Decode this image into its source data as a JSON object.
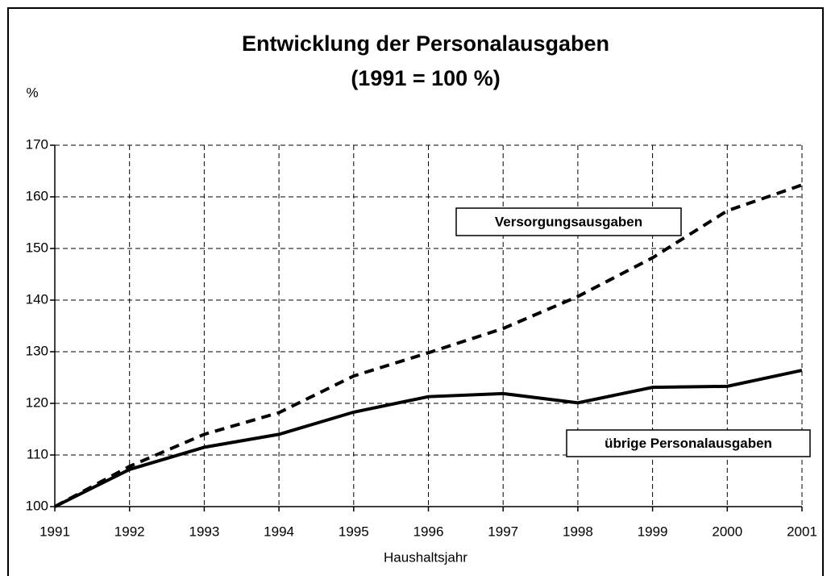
{
  "chart_data": {
    "type": "line",
    "title": "Entwicklung der Personalausgaben",
    "subtitle": "(1991 = 100 %)",
    "y_label": "%",
    "x_label": "Haushaltsjahr",
    "x": [
      1991,
      1992,
      1993,
      1994,
      1995,
      1996,
      1997,
      1998,
      1999,
      2000,
      2001
    ],
    "xlim": [
      1991,
      2001
    ],
    "xticks": [
      1991,
      1992,
      1993,
      1994,
      1995,
      1996,
      1997,
      1998,
      1999,
      2000,
      2001
    ],
    "ylim": [
      100,
      170
    ],
    "yticks": [
      100,
      110,
      120,
      130,
      140,
      150,
      160,
      170
    ],
    "grid": true,
    "series": [
      {
        "name": "Versorgungsausgaben",
        "color": "#000000",
        "dash": true,
        "values": [
          100,
          107.8,
          114,
          118.2,
          125.3,
          129.8,
          134.5,
          140.7,
          148.2,
          157.3,
          162.3
        ]
      },
      {
        "name": "übrige Personalausgaben",
        "color": "#000000",
        "dash": false,
        "values": [
          100,
          107.2,
          111.5,
          114,
          118.3,
          121.3,
          121.9,
          120.1,
          123.1,
          123.3,
          126.4
        ]
      }
    ]
  }
}
